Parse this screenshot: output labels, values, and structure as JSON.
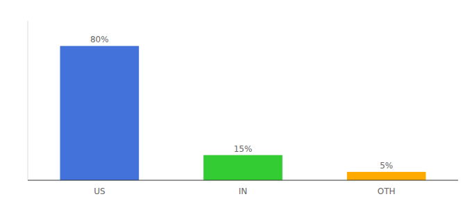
{
  "chart_data": {
    "type": "bar",
    "categories": [
      "US",
      "IN",
      "OTH"
    ],
    "values": [
      80,
      15,
      5
    ],
    "value_labels": [
      "80%",
      "15%",
      "5%"
    ],
    "colors": [
      "#4472db",
      "#33cc33",
      "#ffaa00"
    ],
    "ylim": [
      0,
      95
    ],
    "data_labels": true,
    "tick_labels": "x",
    "grid": false
  }
}
